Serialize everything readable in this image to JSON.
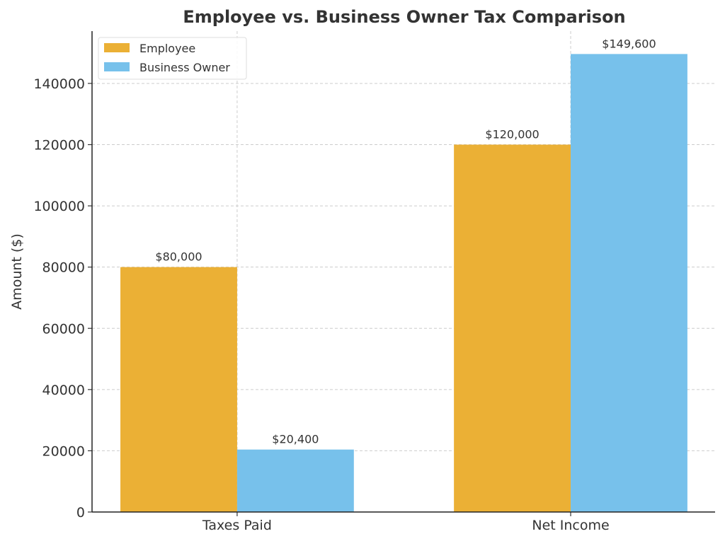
{
  "chart_data": {
    "type": "bar",
    "title": "Employee vs. Business Owner Tax Comparison",
    "xlabel": "",
    "ylabel": "Amount ($)",
    "categories": [
      "Taxes Paid",
      "Net Income"
    ],
    "series": [
      {
        "name": "Employee",
        "values": [
          80000,
          120000
        ],
        "labels": [
          "$80,000",
          "$120,000"
        ],
        "color": "#EBB035"
      },
      {
        "name": "Business Owner",
        "values": [
          20400,
          149600
        ],
        "labels": [
          "$20,400",
          "$149,600"
        ],
        "color": "#77C1EB"
      }
    ],
    "ylim": [
      0,
      157080
    ],
    "yticks": [
      0,
      20000,
      40000,
      60000,
      80000,
      100000,
      120000,
      140000
    ],
    "grid": true,
    "legend_position": "top-left"
  }
}
